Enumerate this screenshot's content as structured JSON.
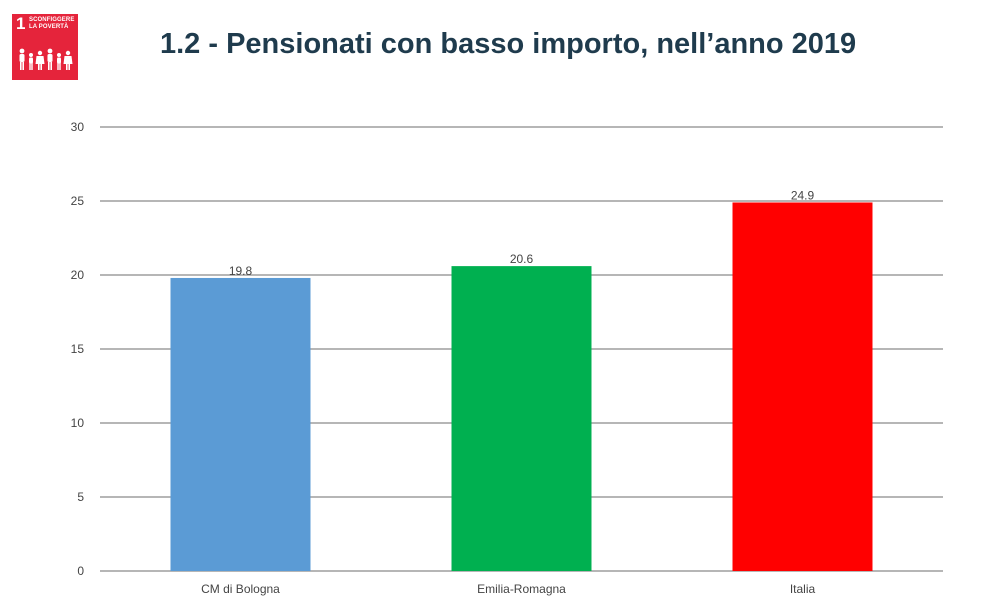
{
  "page": {
    "title": "1.2 - Pensionati con basso importo, nell’anno 2019"
  },
  "logo": {
    "number": "1",
    "line1": "SCONFIGGERE",
    "line2": "LA POVERTÀ",
    "color": "#e5243b",
    "icon": "family-icon"
  },
  "colors": {
    "title": "#1f3b4d",
    "grid": "#9e9e9e",
    "axis_text": "#444444"
  },
  "chart_data": {
    "type": "bar",
    "categories": [
      "CM di Bologna",
      "Emilia-Romagna",
      "Italia"
    ],
    "values": [
      19.8,
      20.6,
      24.9
    ],
    "value_labels": [
      "19.8",
      "20.6",
      "24.9"
    ],
    "bar_colors": [
      "#5b9bd5",
      "#00b050",
      "#ff0000"
    ],
    "ylim": [
      0,
      30
    ],
    "yticks": [
      0,
      5,
      10,
      15,
      20,
      25,
      30
    ],
    "grid": true,
    "legend": "none",
    "title": "",
    "xlabel": "",
    "ylabel": ""
  }
}
